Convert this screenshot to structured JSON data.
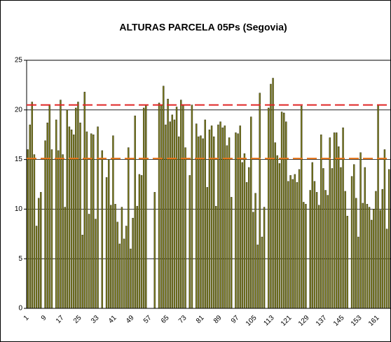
{
  "chart_data": {
    "type": "bar",
    "title": "ALTURAS PARCELA 05Ps (Segovia)",
    "categories": [
      "1",
      null,
      null,
      null,
      null,
      null,
      null,
      null,
      "9",
      null,
      null,
      null,
      null,
      null,
      null,
      null,
      "17",
      null,
      null,
      null,
      null,
      null,
      null,
      null,
      "25",
      null,
      null,
      null,
      null,
      null,
      null,
      null,
      "33",
      null,
      null,
      null,
      null,
      null,
      null,
      null,
      "41",
      null,
      null,
      null,
      null,
      null,
      null,
      null,
      "49",
      null,
      null,
      null,
      null,
      null,
      null,
      null,
      "57",
      null,
      null,
      null,
      null,
      null,
      null,
      null,
      "65",
      null,
      null,
      null,
      null,
      null,
      null,
      null,
      "73",
      null,
      null,
      null,
      null,
      null,
      null,
      null,
      "81",
      null,
      null,
      null,
      null,
      null,
      null,
      null,
      "89",
      null,
      null,
      null,
      null,
      null,
      null,
      null,
      "97",
      null,
      null,
      null,
      null,
      null,
      null,
      null,
      "105",
      null,
      null,
      null,
      null,
      null,
      null,
      null,
      "113",
      null,
      null,
      null,
      null,
      null,
      null,
      null,
      "121",
      null,
      null,
      null,
      null,
      null,
      null,
      null,
      "129",
      null,
      null,
      null,
      null,
      null,
      null,
      null,
      "137",
      null,
      null,
      null,
      null,
      null,
      null,
      null,
      "145",
      null,
      null,
      null,
      null,
      null,
      null,
      null,
      "153",
      null,
      null,
      null,
      null,
      null,
      null,
      null,
      "161",
      null,
      null,
      null,
      null,
      null
    ],
    "values": [
      16,
      18.5,
      20.8,
      15.5,
      8.3,
      11.1,
      11.7,
      0,
      16.9,
      18.7,
      20.5,
      16,
      0,
      19,
      15.9,
      21,
      15.5,
      10.2,
      20,
      18.3,
      18,
      17.5,
      20.2,
      20.8,
      18.7,
      7.4,
      21.8,
      17.8,
      9.5,
      17.6,
      17.5,
      9,
      18.3,
      0,
      15.9,
      0,
      13.2,
      15,
      10.4,
      17.4,
      10.5,
      8.7,
      6.5,
      10.2,
      7,
      8.3,
      16.2,
      6,
      9.1,
      19.4,
      10.3,
      13.5,
      13.4,
      20.2,
      20.5,
      0,
      0,
      0,
      11.7,
      0,
      20.7,
      20.5,
      22.4,
      18.5,
      21.1,
      18.8,
      19.5,
      19,
      20.3,
      17.3,
      21,
      20.5,
      16.2,
      0,
      13.4,
      20.5,
      0,
      18.6,
      17.3,
      17.4,
      17.1,
      19,
      12.2,
      18,
      18.4,
      17.3,
      10.3,
      18.5,
      18.8,
      18.2,
      18.4,
      16.4,
      17.2,
      11.2,
      0,
      17.7,
      17.6,
      18.4,
      14.7,
      15.6,
      12.7,
      14.2,
      19.3,
      9.7,
      11.6,
      6.4,
      21.7,
      7.2,
      10.2,
      0,
      20.2,
      22.6,
      23.2,
      16.7,
      15.4,
      14.6,
      19.8,
      19.7,
      18.8,
      12.8,
      13.4,
      13,
      13.5,
      12.7,
      14,
      20.4,
      10.7,
      10.5,
      0,
      11.9,
      14.7,
      12.8,
      11.7,
      10.4,
      17.5,
      14.1,
      11.9,
      11.4,
      17.2,
      14.1,
      17.7,
      17.7,
      16.3,
      14.2,
      18.2,
      11.8,
      9.3,
      0,
      13.3,
      14.5,
      11.1,
      7.2,
      15.7,
      10.6,
      14.2,
      10.5,
      10.2,
      8.9,
      10,
      11.8,
      20.5,
      9.9,
      12,
      16,
      8,
      14
    ],
    "color": "#7a7a1e",
    "ylim": [
      0,
      25
    ],
    "yticks": [
      0,
      5,
      10,
      15,
      20,
      25
    ],
    "grid": true,
    "reference_lines": [
      {
        "value": 20.5,
        "color": "#e02828"
      },
      {
        "value": 15.1,
        "color": "#e8761a"
      }
    ]
  }
}
